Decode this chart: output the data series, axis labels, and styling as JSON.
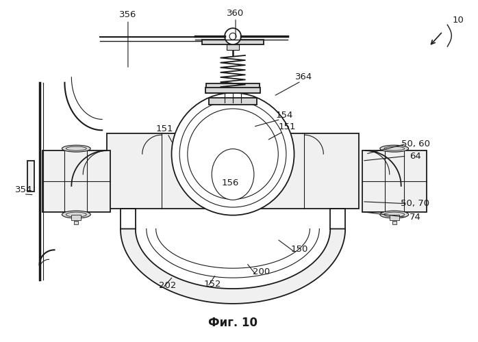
{
  "title": "Фиг. 10",
  "background_color": "#ffffff",
  "line_color": "#1a1a1a",
  "fill_light": "#f0f0f0",
  "fill_medium": "#d8d8d8",
  "fill_dark": "#a8a8a8",
  "label_fontsize": 9.5
}
